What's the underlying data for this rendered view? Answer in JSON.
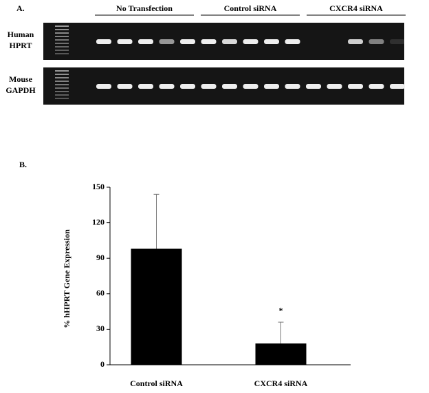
{
  "panel_a": {
    "label": "A.",
    "groups": [
      "No Transfection",
      "Control siRNA",
      "CXCR4 siRNA"
    ],
    "rows": [
      [
        "Human",
        "HPRT"
      ],
      [
        "Mouse",
        "GAPDH"
      ]
    ]
  },
  "chart_data": {
    "type": "bar",
    "label": "B.",
    "y_label": "% hHPRT Gene Expression",
    "categories": [
      "Control siRNA",
      "CXCR4 siRNA"
    ],
    "series": [
      {
        "color": "#000000",
        "values": [
          98,
          18
        ],
        "errors": [
          46,
          18
        ]
      }
    ],
    "annotation": "*",
    "ylim": [
      0,
      150
    ],
    "yticks": [
      0,
      30,
      60,
      90,
      120,
      150
    ]
  }
}
